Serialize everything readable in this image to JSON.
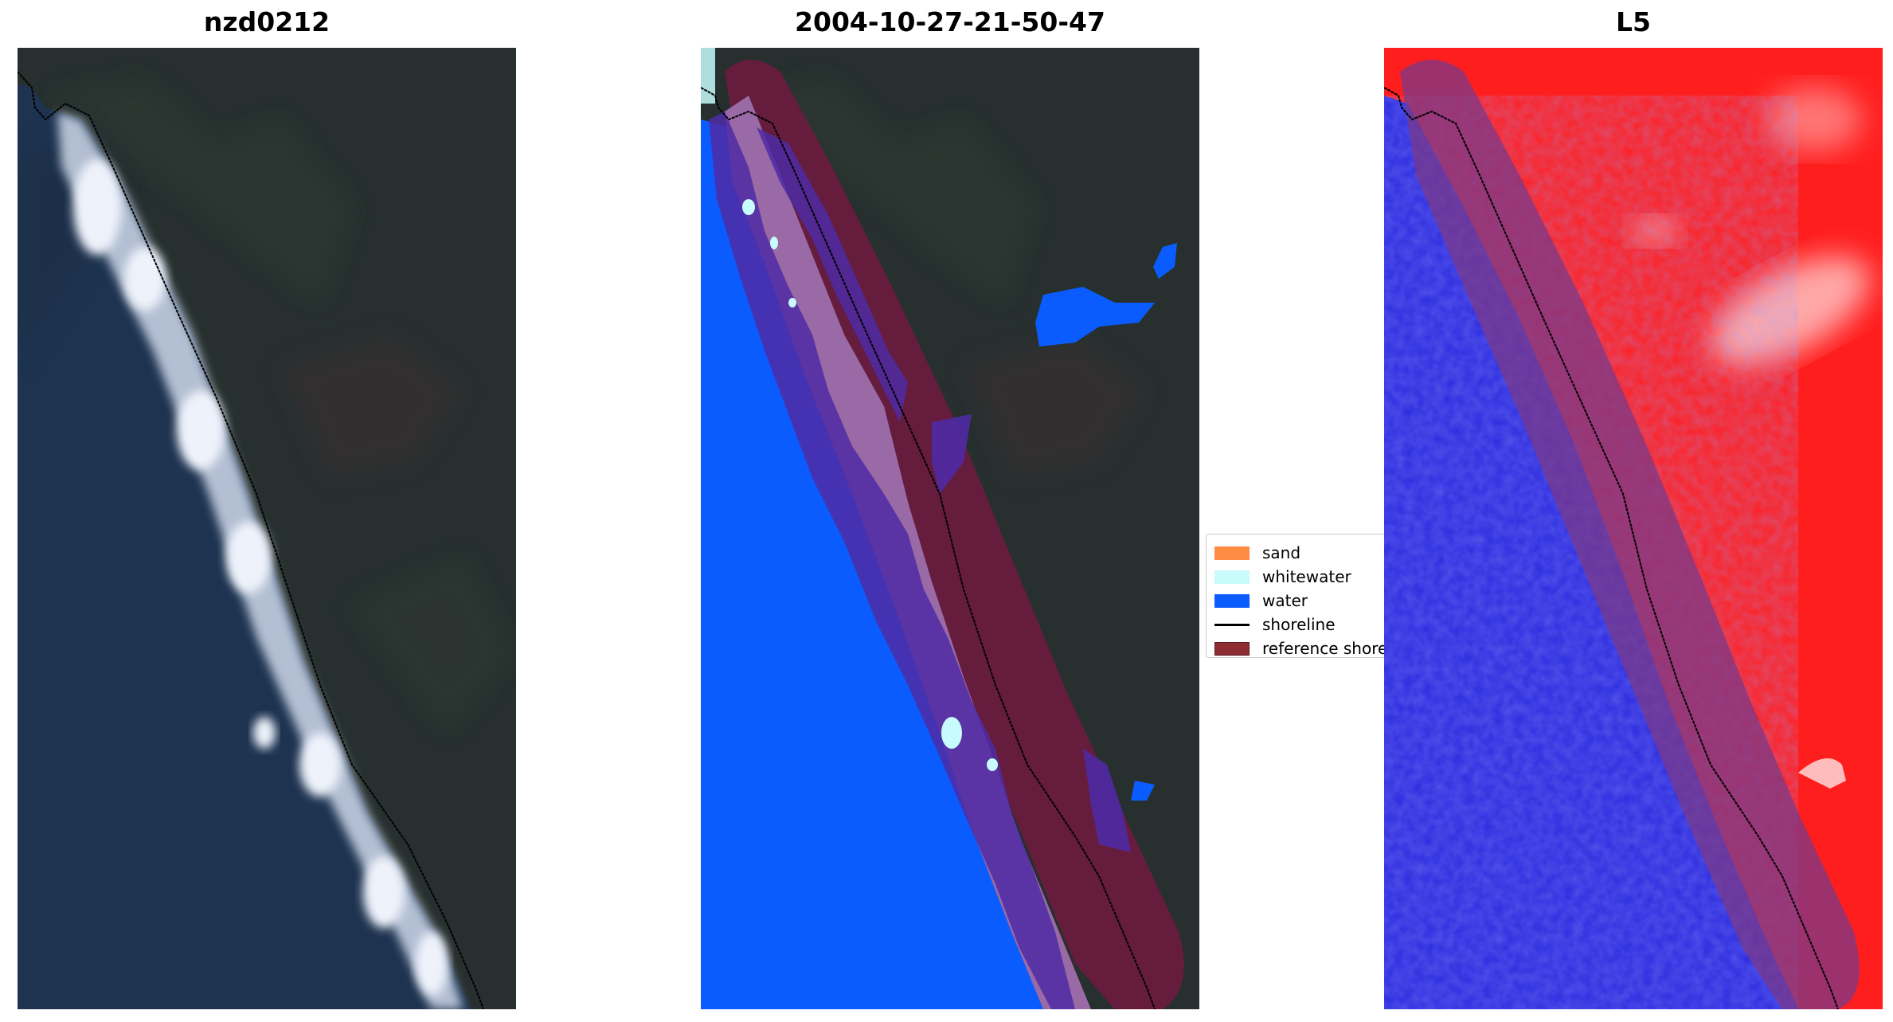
{
  "panels": {
    "left": {
      "title": "nzd0212"
    },
    "middle": {
      "title": "2004-10-27-21-50-47"
    },
    "right": {
      "title": "L5"
    }
  },
  "legend": {
    "items": [
      {
        "label": "sand",
        "kind": "patch",
        "color": "#ff8c42"
      },
      {
        "label": "whitewater",
        "kind": "patch",
        "color": "#c8fbfb"
      },
      {
        "label": "water",
        "kind": "patch",
        "color": "#0a5cff"
      },
      {
        "label": "shoreline",
        "kind": "line",
        "color": "#000000"
      },
      {
        "label": "reference shoreline",
        "kind": "patch",
        "color": "#8e2c33",
        "edge": "#5a1a20"
      }
    ]
  },
  "colors": {
    "land_dark": "#27302f",
    "ocean_dark": "#1e3350",
    "surf_white": "#e4ecf6",
    "classified_water": "#0a5cff",
    "reference_buffer": "#6b1b3f",
    "buffer_overlap_sand": "#9a6aa6",
    "buffer_overlap_water": "#4f2aa4",
    "index_land_red": "#ff1e1e",
    "index_water_blue": "#2a2adf"
  }
}
